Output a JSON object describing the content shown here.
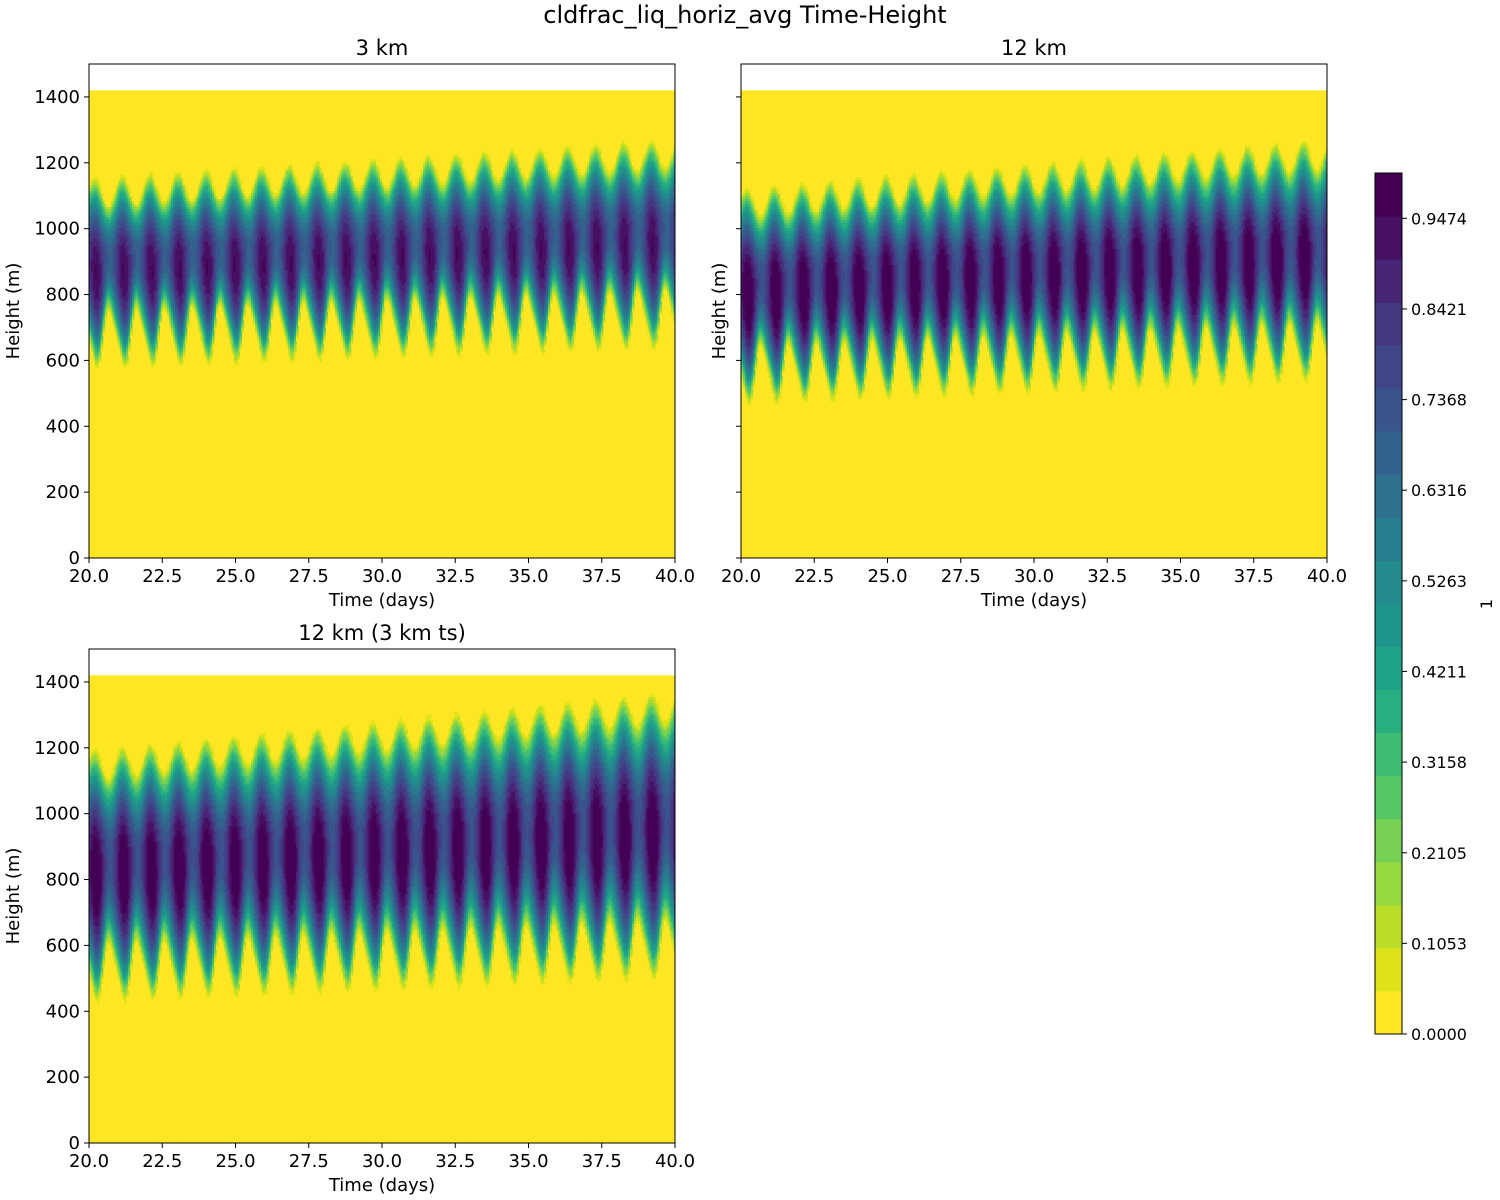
{
  "figure_title": "cldfrac_liq_horiz_avg Time-Height",
  "chart_data": [
    {
      "type": "heatmap",
      "title": "3 km",
      "xlabel": "Time (days)",
      "ylabel": "Height (m)",
      "xlim": [
        20.0,
        40.0
      ],
      "ylim": [
        0,
        1500
      ],
      "xticks": [
        "20.0",
        "22.5",
        "25.0",
        "27.5",
        "30.0",
        "32.5",
        "35.0",
        "37.5",
        "40.0"
      ],
      "yticks": [
        "0",
        "200",
        "400",
        "600",
        "800",
        "1000",
        "1200",
        "1400"
      ],
      "show_y_tick_labels": true,
      "field_top_height": 1420,
      "cycle_period_days": 0.95,
      "cloud_base_start": 580,
      "cloud_base_end": 640,
      "cloud_top_start": 1110,
      "cloud_top_end": 1230,
      "core_max_fraction": 0.93
    },
    {
      "type": "heatmap",
      "title": "12 km",
      "xlabel": "Time (days)",
      "ylabel": "Height (m)",
      "xlim": [
        20.0,
        40.0
      ],
      "ylim": [
        0,
        1500
      ],
      "xticks": [
        "20.0",
        "22.5",
        "25.0",
        "27.5",
        "30.0",
        "32.5",
        "35.0",
        "37.5",
        "40.0"
      ],
      "yticks": [
        "0",
        "200",
        "400",
        "600",
        "800",
        "1000",
        "1200",
        "1400"
      ],
      "show_y_tick_labels": false,
      "field_top_height": 1420,
      "cycle_period_days": 0.95,
      "cloud_base_start": 470,
      "cloud_base_end": 540,
      "cloud_top_start": 1080,
      "cloud_top_end": 1230,
      "core_max_fraction": 1.0
    },
    {
      "type": "heatmap",
      "title": "12 km (3 km ts)",
      "xlabel": "Time (days)",
      "ylabel": "Height (m)",
      "xlim": [
        20.0,
        40.0
      ],
      "ylim": [
        0,
        1500
      ],
      "xticks": [
        "20.0",
        "22.5",
        "25.0",
        "27.5",
        "30.0",
        "32.5",
        "35.0",
        "37.5",
        "40.0"
      ],
      "yticks": [
        "0",
        "200",
        "400",
        "600",
        "800",
        "1000",
        "1200",
        "1400"
      ],
      "show_y_tick_labels": true,
      "field_top_height": 1420,
      "cycle_period_days": 0.95,
      "cloud_base_start": 430,
      "cloud_base_end": 500,
      "cloud_top_start": 1150,
      "cloud_top_end": 1330,
      "core_max_fraction": 1.0
    }
  ],
  "colorbar": {
    "label": "1",
    "min": 0.0,
    "max": 1.0,
    "levels": 19,
    "tick_labels": [
      "0.0000",
      "0.1053",
      "0.2105",
      "0.3158",
      "0.4211",
      "0.5263",
      "0.6316",
      "0.7368",
      "0.8421",
      "0.9474"
    ],
    "colors": [
      "#fde725",
      "#dde318",
      "#bade28",
      "#95d840",
      "#75d054",
      "#56c667",
      "#3dbc74",
      "#29af7f",
      "#20a386",
      "#1f968b",
      "#238a8d",
      "#287d8e",
      "#2d718e",
      "#33638d",
      "#39558c",
      "#404688",
      "#453781",
      "#482576",
      "#471063",
      "#440154"
    ]
  }
}
